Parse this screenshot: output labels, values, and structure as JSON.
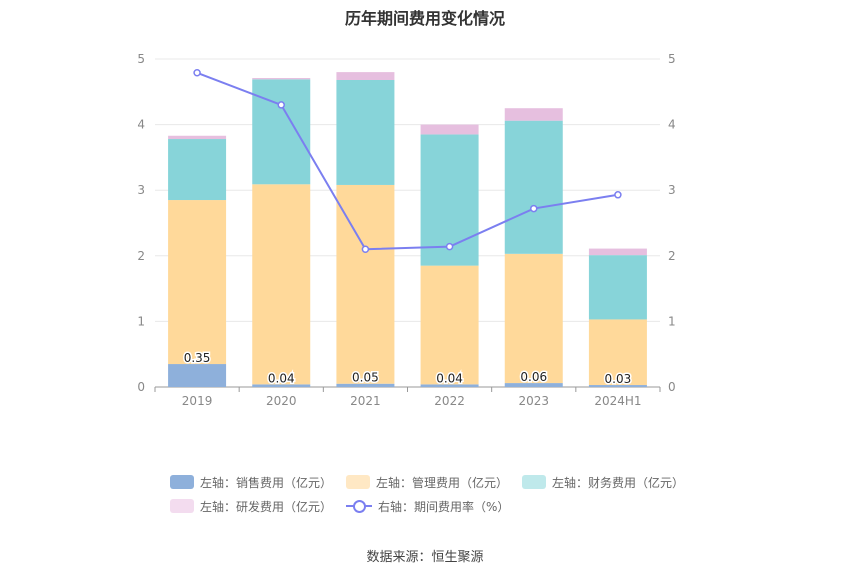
{
  "chart_data": {
    "type": "bar",
    "title": "历年期间费用变化情况",
    "categories": [
      "2019",
      "2020",
      "2021",
      "2022",
      "2023",
      "2024H1"
    ],
    "series": [
      {
        "name": "左轴：销售费用（亿元）",
        "axis": "left",
        "kind": "bar",
        "color": "#8eb0db",
        "values": [
          0.35,
          0.04,
          0.05,
          0.04,
          0.06,
          0.03
        ],
        "labels": [
          "0.35",
          "0.04",
          "0.05",
          "0.04",
          "0.06",
          "0.03"
        ]
      },
      {
        "name": "左轴：管理费用（亿元）",
        "axis": "left",
        "kind": "bar",
        "color": "#ffd99a",
        "legend_color": "#ffe8c4",
        "values": [
          2.5,
          3.05,
          3.03,
          1.81,
          1.97,
          1.0
        ]
      },
      {
        "name": "左轴：财务费用（亿元）",
        "axis": "left",
        "kind": "bar",
        "color": "#87d4d9",
        "legend_color": "#bfe9eb",
        "values": [
          0.93,
          1.6,
          1.6,
          2.0,
          2.03,
          0.98
        ]
      },
      {
        "name": "左轴：研发费用（亿元）",
        "axis": "left",
        "kind": "bar",
        "color": "#e6bfdf",
        "legend_color": "#f3dcef",
        "values": [
          0.05,
          0.02,
          0.12,
          0.15,
          0.19,
          0.1
        ]
      },
      {
        "name": "右轴：期间费用率（%）",
        "axis": "right",
        "kind": "line",
        "color": "#7b7ff0",
        "values": [
          4.79,
          4.3,
          2.1,
          2.14,
          2.72,
          2.93
        ]
      }
    ],
    "y_left": {
      "min": 0,
      "max": 5,
      "ticks": [
        "0",
        "1",
        "2",
        "3",
        "4",
        "5"
      ]
    },
    "y_right": {
      "min": 0,
      "max": 5,
      "ticks": [
        "0",
        "1",
        "2",
        "3",
        "4",
        "5"
      ]
    },
    "grid": true,
    "legend_position": "bottom"
  },
  "source": "数据来源：恒生聚源"
}
